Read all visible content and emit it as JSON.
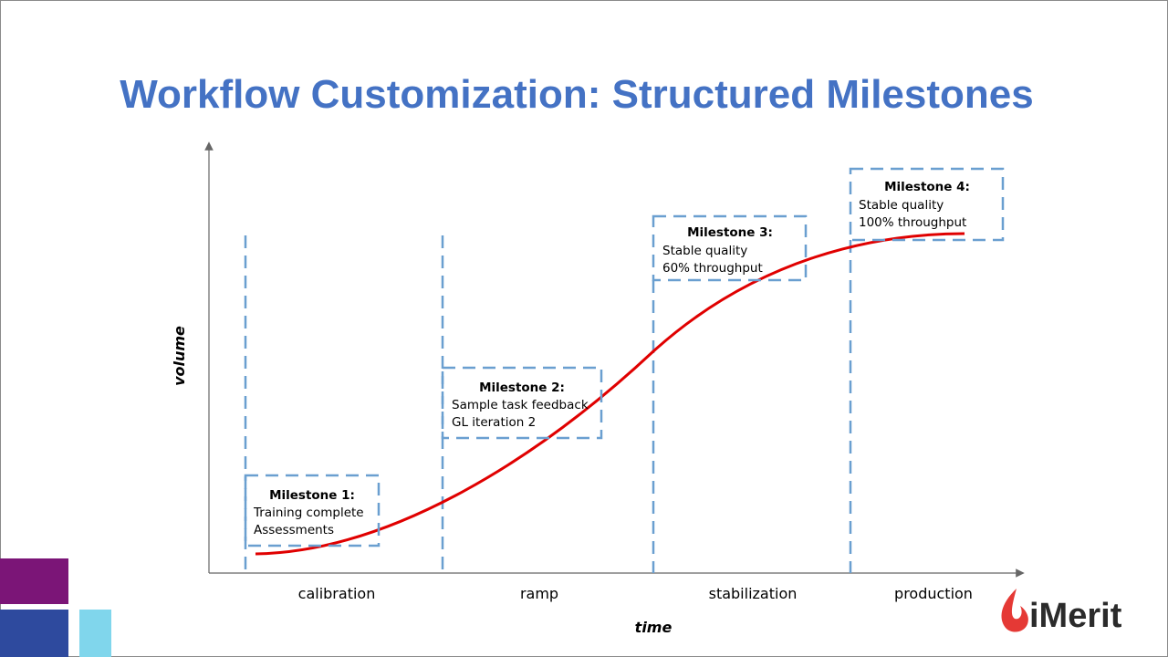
{
  "title": "Workflow Customization: Structured Milestones",
  "y_axis_label": "volume",
  "x_axis_label": "time",
  "phases": [
    "calibration",
    "ramp",
    "stabilization",
    "production"
  ],
  "milestones": [
    {
      "title": "Milestone 1:",
      "lines": [
        "Training complete",
        "Assessments"
      ]
    },
    {
      "title": "Milestone 2:",
      "lines": [
        "Sample task feedback",
        "GL iteration 2"
      ]
    },
    {
      "title": "Milestone 3:",
      "lines": [
        "Stable quality",
        "60% throughput"
      ]
    },
    {
      "title": "Milestone 4:",
      "lines": [
        "Stable quality",
        "100% throughput"
      ]
    }
  ],
  "logo": "iMerit"
}
